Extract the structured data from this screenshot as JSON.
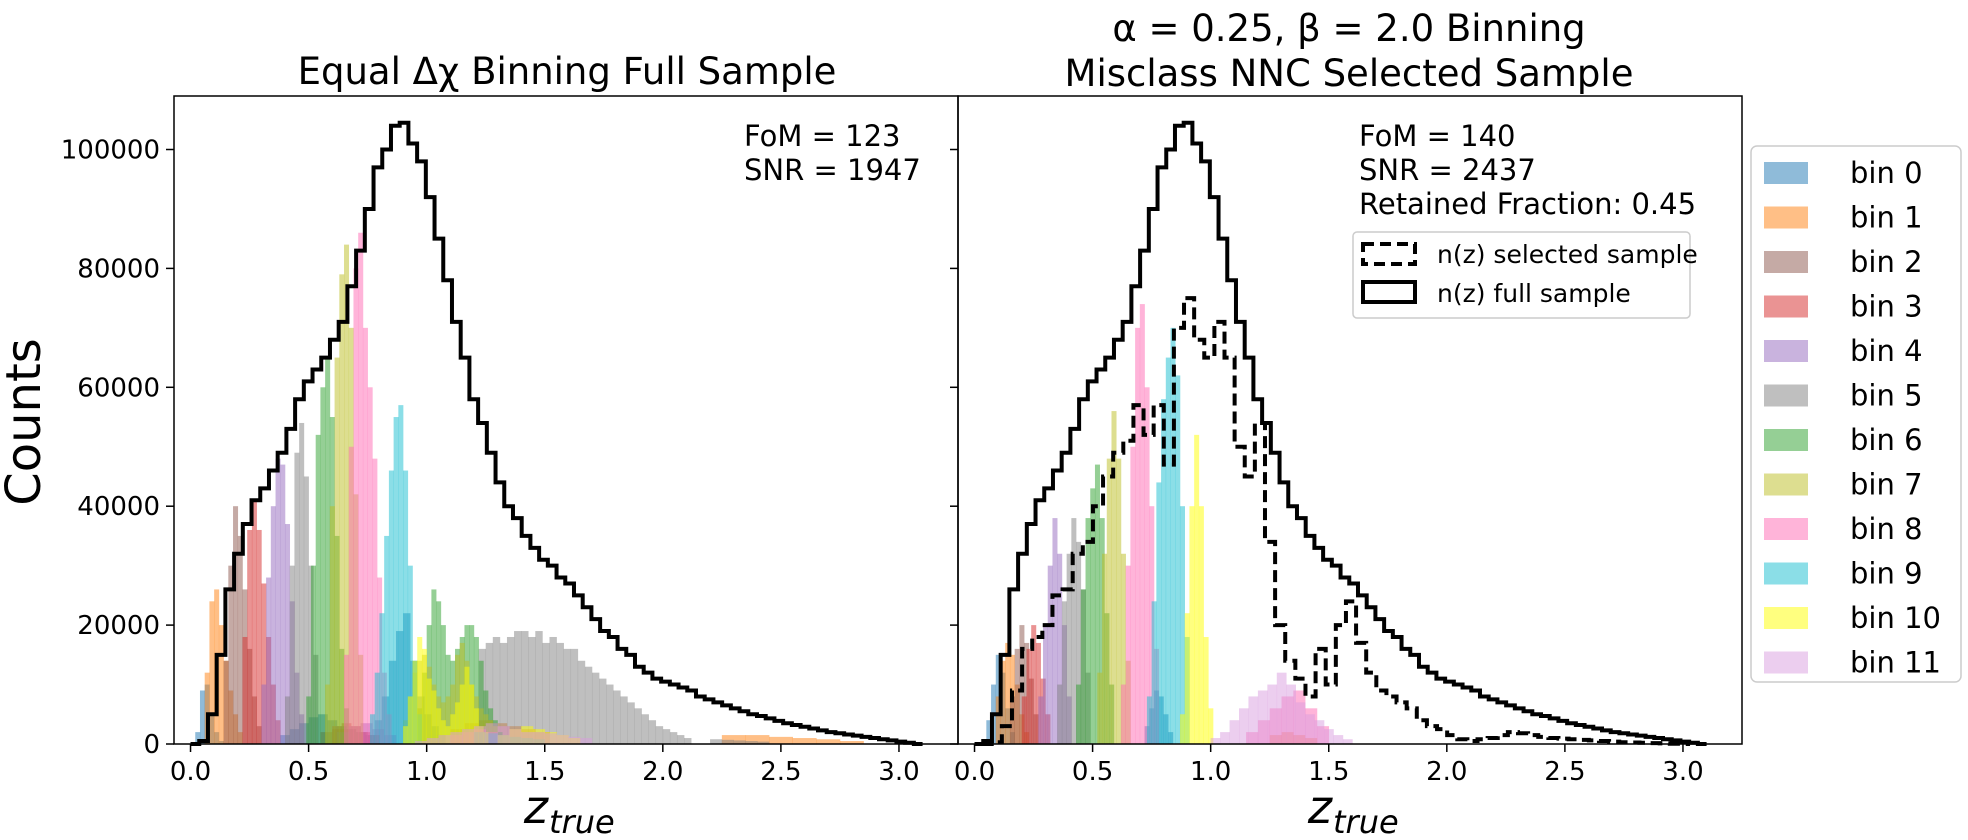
{
  "bin_colors": [
    "#1f77b4",
    "#ff7f0e",
    "#8c564b",
    "#d62728",
    "#9467bd",
    "#7f7f7f",
    "#2ca02c",
    "#bcbd22",
    "#ff69b4",
    "#17becf",
    "#ffff00",
    "#da9ee0"
  ],
  "shared": {
    "ylabel": "Counts",
    "xlabel_main": "z",
    "xlabel_sub": "true",
    "xticks": [
      "0.0",
      "0.5",
      "1.0",
      "1.5",
      "2.0",
      "2.5",
      "3.0"
    ],
    "yticks": [
      "0",
      "20000",
      "40000",
      "60000",
      "80000",
      "100000"
    ],
    "xlim": [
      -0.07,
      3.25
    ],
    "ylim": [
      0,
      109000
    ]
  },
  "legend": {
    "bins": [
      "bin 0",
      "bin 1",
      "bin 2",
      "bin 3",
      "bin 4",
      "bin 5",
      "bin 6",
      "bin 7",
      "bin 8",
      "bin 9",
      "bin 10",
      "bin 11"
    ],
    "nz_selected": "n(z) selected sample",
    "nz_full": "n(z) full sample"
  },
  "chart_data": [
    {
      "type": "bar",
      "title": "Equal Δχ Binning Full Sample",
      "annotation": [
        "FoM = 123",
        "SNR = 1947"
      ],
      "n_full": [
        0,
        500,
        5000,
        15000,
        26000,
        32000,
        37000,
        41000,
        43000,
        46000,
        49000,
        53000,
        58000,
        61000,
        63000,
        65000,
        68000,
        71000,
        77000,
        83000,
        90000,
        97000,
        100000,
        104000,
        104500,
        101000,
        98000,
        92000,
        85000,
        78000,
        71000,
        65000,
        58000,
        54000,
        49000,
        44000,
        40000,
        38000,
        35000,
        33000,
        31000,
        30000,
        28000,
        27000,
        25000,
        23000,
        21000,
        19000,
        18000,
        16000,
        15000,
        13000,
        12000,
        11000,
        10500,
        10000,
        9500,
        9000,
        8000,
        7500,
        7000,
        6500,
        6000,
        5500,
        5000,
        4700,
        4300,
        3900,
        3500,
        3200,
        2900,
        2600,
        2300,
        2000,
        1800,
        1600,
        1400,
        1200,
        1000,
        800,
        600,
        400,
        200,
        0
      ],
      "components": [
        {
          "bin": 0,
          "segs": [
            {
              "x0": 0.02,
              "d": 0.02,
              "v": [
                2000,
                9000,
                10000,
                5000,
                2000,
                500
              ]
            },
            {
              "x0": 0.38,
              "d": 0.04,
              "v": [
                1500,
                2500,
                3500,
                4500,
                5000,
                4000,
                3000,
                2500,
                2000,
                1500
              ]
            },
            {
              "x0": 0.78,
              "d": 0.03,
              "v": [
                4000,
                8000,
                14000,
                19000,
                22000,
                14000,
                8000,
                5000,
                3000,
                1500
              ]
            }
          ]
        },
        {
          "bin": 1,
          "segs": [
            {
              "x0": 0.06,
              "d": 0.02,
              "v": [
                12000,
                24000,
                26000,
                20000,
                14000,
                9000,
                5000,
                2000
              ]
            },
            {
              "x0": 1.1,
              "d": 0.06,
              "v": [
                2500,
                3500,
                4000,
                3500,
                3000,
                2500,
                2000
              ]
            },
            {
              "x0": 2.25,
              "d": 0.1,
              "v": [
                1500,
                1500,
                1200,
                1000,
                800,
                500
              ]
            }
          ]
        },
        {
          "bin": 2,
          "segs": [
            {
              "x0": 0.14,
              "d": 0.02,
              "v": [
                14000,
                30000,
                40000,
                35000,
                26000,
                16000,
                8000,
                3000
              ]
            },
            {
              "x0": 0.55,
              "d": 0.05,
              "v": [
                2000,
                2500,
                2500,
                2000,
                1500
              ]
            }
          ]
        },
        {
          "bin": 3,
          "segs": [
            {
              "x0": 0.22,
              "d": 0.02,
              "v": [
                18000,
                36000,
                41000,
                36000,
                27000,
                18000,
                10000,
                4000
              ]
            },
            {
              "x0": 0.6,
              "d": 0.04,
              "v": [
                3000,
                3500,
                3000,
                2000,
                1500
              ]
            }
          ]
        },
        {
          "bin": 4,
          "segs": [
            {
              "x0": 0.3,
              "d": 0.02,
              "v": [
                10000,
                28000,
                40000,
                48000,
                47000,
                37000,
                24000,
                12000,
                5000
              ]
            },
            {
              "x0": 0.62,
              "d": 0.05,
              "v": [
                2000,
                3000,
                3500,
                2500,
                1500
              ]
            }
          ]
        },
        {
          "bin": 5,
          "segs": [
            {
              "x0": 0.4,
              "d": 0.02,
              "v": [
                8000,
                30000,
                49000,
                54000,
                45000,
                30000,
                15000
              ]
            },
            {
              "x0": 1.22,
              "d": 0.03,
              "v": [
                16000,
                17000,
                18000,
                17000,
                18000,
                19000,
                19000,
                18000,
                19000,
                17000,
                18000,
                17000,
                16000,
                16000,
                14000,
                13000,
                12000,
                11000,
                10000,
                9000,
                8000,
                7000,
                6000,
                5000,
                4000,
                3000,
                2500,
                2000,
                1500,
                1000
              ]
            },
            {
              "x0": 2.2,
              "d": 0.05,
              "v": [
                800,
                700,
                600,
                500,
                400
              ]
            }
          ]
        },
        {
          "bin": 6,
          "segs": [
            {
              "x0": 0.49,
              "d": 0.02,
              "v": [
                8000,
                30000,
                52000,
                60000,
                65000,
                55000,
                35000,
                16000,
                6000
              ]
            },
            {
              "x0": 0.96,
              "d": 0.02,
              "v": [
                6000,
                12000,
                20000,
                26000,
                24000,
                20000,
                15000,
                14000,
                16000,
                18000,
                20000,
                20000,
                18000,
                14000,
                9000,
                6000,
                4000,
                2000
              ]
            }
          ]
        },
        {
          "bin": 7,
          "segs": [
            {
              "x0": 0.57,
              "d": 0.02,
              "v": [
                10000,
                40000,
                65000,
                79000,
                84000,
                70000,
                42000,
                15000
              ]
            },
            {
              "x0": 0.9,
              "d": 0.02,
              "v": [
                4000,
                8000,
                12000,
                14000,
                15000,
                13000,
                10000,
                8000,
                7000,
                8000,
                10000,
                15000,
                17000,
                14000,
                10000,
                8000,
                6000,
                5000,
                4000,
                3000
              ]
            }
          ]
        },
        {
          "bin": 8,
          "segs": [
            {
              "x0": 0.65,
              "d": 0.02,
              "v": [
                15000,
                50000,
                80000,
                86000,
                70000,
                60000,
                48000,
                28000,
                12000,
                5000
              ]
            },
            {
              "x0": 1.1,
              "d": 0.05,
              "v": [
                1500,
                2000,
                2500,
                2000,
                1500
              ]
            }
          ]
        },
        {
          "bin": 9,
          "segs": [
            {
              "x0": 0.76,
              "d": 0.02,
              "v": [
                5000,
                12000,
                22000,
                35000,
                46000,
                55000,
                57000,
                46000,
                30000,
                14000,
                5000
              ]
            },
            {
              "x0": 1.2,
              "d": 0.05,
              "v": [
                2000,
                1800,
                1500,
                1200,
                1000,
                800
              ]
            }
          ]
        },
        {
          "bin": 10,
          "segs": [
            {
              "x0": 0.9,
              "d": 0.02,
              "v": [
                3000,
                8000,
                14000,
                18000,
                16000,
                11000,
                9000,
                6000,
                4000,
                3000,
                5000,
                7000,
                10000,
                13000,
                10000,
                6000,
                3000,
                2000
              ]
            },
            {
              "x0": 1.3,
              "d": 0.05,
              "v": [
                1500,
                2500,
                3000,
                2500,
                2000,
                1500,
                1000
              ]
            }
          ]
        },
        {
          "bin": 11,
          "segs": [
            {
              "x0": 0.95,
              "d": 0.05,
              "v": [
                500,
                1000,
                1500,
                2000,
                2500,
                3000,
                3500,
                3000,
                2500,
                2000,
                2000,
                1800,
                1500,
                1200,
                1000
              ]
            }
          ]
        }
      ]
    },
    {
      "type": "bar",
      "title_line1": "α = 0.25, β = 2.0 Binning",
      "title_line2": "Misclass NNC Selected Sample",
      "annotation": [
        "FoM = 140",
        "SNR = 2437",
        "Retained Fraction: 0.45"
      ],
      "n_full": [
        0,
        500,
        5000,
        15000,
        26000,
        32000,
        37000,
        41000,
        43000,
        46000,
        49000,
        53000,
        58000,
        61000,
        63000,
        65000,
        68000,
        71000,
        77000,
        83000,
        90000,
        97000,
        100000,
        104000,
        104500,
        101000,
        98000,
        92000,
        85000,
        78000,
        71000,
        65000,
        58000,
        54000,
        49000,
        44000,
        40000,
        38000,
        35000,
        33000,
        31000,
        30000,
        28000,
        27000,
        25000,
        23000,
        21000,
        19000,
        18000,
        16000,
        15000,
        13000,
        12000,
        11000,
        10500,
        10000,
        9500,
        9000,
        8000,
        7500,
        7000,
        6500,
        6000,
        5500,
        5000,
        4700,
        4300,
        3900,
        3500,
        3200,
        2900,
        2600,
        2300,
        2000,
        1800,
        1600,
        1400,
        1200,
        1000,
        800,
        600,
        400,
        200,
        0
      ],
      "n_selected": [
        0,
        300,
        3000,
        9000,
        16000,
        18000,
        20000,
        25000,
        26000,
        32000,
        34000,
        40000,
        45000,
        49000,
        51000,
        57000,
        52000,
        57000,
        47000,
        70000,
        75000,
        68000,
        65000,
        71000,
        65000,
        50000,
        45000,
        54000,
        34000,
        20000,
        14000,
        11000,
        8000,
        16000,
        10000,
        20000,
        24000,
        17000,
        12000,
        9000,
        8000,
        7000,
        6000,
        4000,
        3000,
        2500,
        1500,
        800,
        500,
        800,
        1000,
        1500,
        2000,
        1800,
        1500,
        1200,
        1000,
        900,
        800,
        700,
        600,
        500,
        400,
        300,
        250,
        200,
        150,
        100,
        50,
        0
      ],
      "n_selected_x0": 0.03,
      "n_selected_dx": 0.0375,
      "components": [
        {
          "bin": 0,
          "segs": [
            {
              "x0": 0.05,
              "d": 0.02,
              "v": [
                4000,
                10000,
                15000,
                12000,
                6000,
                2000
              ]
            },
            {
              "x0": 0.72,
              "d": 0.02,
              "v": [
                3000,
                6000,
                9000,
                8000,
                5000,
                2000
              ]
            }
          ]
        },
        {
          "bin": 1,
          "segs": [
            {
              "x0": 0.09,
              "d": 0.02,
              "v": [
                8000,
                14000,
                17000,
                15000,
                10000,
                5000,
                2000
              ]
            },
            {
              "x0": 1.25,
              "d": 0.05,
              "v": [
                1500,
                2000,
                1500,
                1000
              ]
            }
          ]
        },
        {
          "bin": 2,
          "segs": [
            {
              "x0": 0.15,
              "d": 0.02,
              "v": [
                8000,
                16000,
                20000,
                17000,
                11000,
                5000
              ]
            }
          ]
        },
        {
          "bin": 3,
          "segs": [
            {
              "x0": 0.2,
              "d": 0.02,
              "v": [
                8000,
                16000,
                20000,
                17000,
                11000,
                5000
              ]
            }
          ]
        },
        {
          "bin": 4,
          "segs": [
            {
              "x0": 0.27,
              "d": 0.02,
              "v": [
                8000,
                20000,
                30000,
                38000,
                32000,
                20000,
                8000
              ]
            }
          ]
        },
        {
          "bin": 5,
          "segs": [
            {
              "x0": 0.35,
              "d": 0.02,
              "v": [
                10000,
                24000,
                32000,
                38000,
                34000,
                26000,
                12000
              ]
            }
          ]
        },
        {
          "bin": 6,
          "segs": [
            {
              "x0": 0.43,
              "d": 0.02,
              "v": [
                10000,
                26000,
                38000,
                43000,
                47000,
                38000,
                22000,
                10000
              ]
            }
          ]
        },
        {
          "bin": 7,
          "segs": [
            {
              "x0": 0.52,
              "d": 0.02,
              "v": [
                12000,
                32000,
                48000,
                56000,
                48000,
                32000,
                14000
              ]
            }
          ]
        },
        {
          "bin": 8,
          "segs": [
            {
              "x0": 0.62,
              "d": 0.02,
              "v": [
                10000,
                30000,
                50000,
                70000,
                74000,
                60000,
                40000,
                16000
              ]
            },
            {
              "x0": 1.15,
              "d": 0.05,
              "v": [
                2000,
                4000,
                6000,
                8000,
                9000,
                6000,
                3000
              ]
            }
          ]
        },
        {
          "bin": 9,
          "segs": [
            {
              "x0": 0.73,
              "d": 0.02,
              "v": [
                8000,
                24000,
                44000,
                58000,
                65000,
                70000,
                62000,
                40000,
                18000
              ]
            }
          ]
        },
        {
          "bin": 10,
          "segs": [
            {
              "x0": 0.87,
              "d": 0.02,
              "v": [
                5000,
                22000,
                40000,
                52000,
                40000,
                18000,
                6000
              ]
            }
          ]
        },
        {
          "bin": 11,
          "segs": [
            {
              "x0": 1.0,
              "d": 0.04,
              "v": [
                1000,
                2000,
                4000,
                6000,
                8000,
                9000,
                10000,
                12000,
                10000,
                7000,
                5000,
                4000,
                2500,
                1500,
                800
              ]
            }
          ]
        }
      ]
    }
  ]
}
